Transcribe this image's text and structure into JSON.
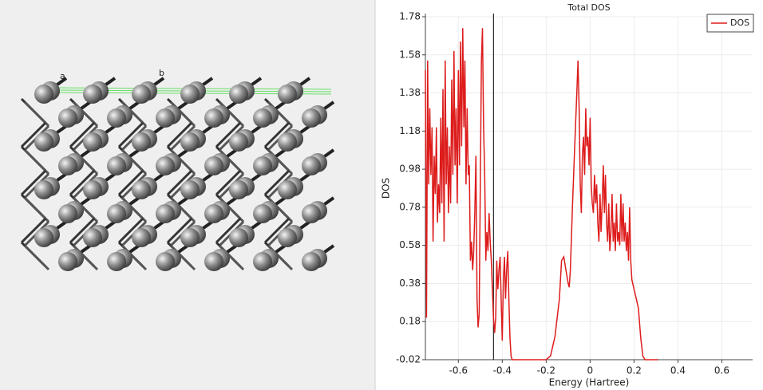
{
  "structure_view": {
    "labels": [
      "a",
      "b"
    ]
  },
  "chart_data": {
    "type": "line",
    "title": "Total DOS",
    "xlabel": "Energy (Hartree)",
    "ylabel": "DOS",
    "xlim": [
      -0.75,
      0.74
    ],
    "ylim": [
      -0.02,
      1.78
    ],
    "xticks": [
      -0.6,
      -0.4,
      -0.2,
      0,
      0.2,
      0.4,
      0.6
    ],
    "yticks": [
      -0.02,
      0.18,
      0.38,
      0.58,
      0.78,
      0.98,
      1.18,
      1.38,
      1.58,
      1.78
    ],
    "grid": true,
    "legend": "upper right",
    "vline": -0.44,
    "series": [
      {
        "name": "DOS",
        "color": "#dd1c1c",
        "x": [
          -0.75,
          -0.745,
          -0.74,
          -0.735,
          -0.73,
          -0.725,
          -0.72,
          -0.715,
          -0.71,
          -0.705,
          -0.7,
          -0.695,
          -0.69,
          -0.685,
          -0.68,
          -0.675,
          -0.67,
          -0.665,
          -0.66,
          -0.655,
          -0.65,
          -0.645,
          -0.64,
          -0.635,
          -0.63,
          -0.625,
          -0.62,
          -0.615,
          -0.61,
          -0.605,
          -0.6,
          -0.595,
          -0.59,
          -0.585,
          -0.58,
          -0.575,
          -0.57,
          -0.565,
          -0.56,
          -0.555,
          -0.55,
          -0.545,
          -0.54,
          -0.535,
          -0.53,
          -0.525,
          -0.52,
          -0.515,
          -0.51,
          -0.505,
          -0.5,
          -0.495,
          -0.49,
          -0.485,
          -0.48,
          -0.475,
          -0.47,
          -0.465,
          -0.46,
          -0.455,
          -0.45,
          -0.445,
          -0.44,
          -0.435,
          -0.43,
          -0.425,
          -0.42,
          -0.415,
          -0.41,
          -0.405,
          -0.4,
          -0.395,
          -0.39,
          -0.385,
          -0.38,
          -0.375,
          -0.37,
          -0.365,
          -0.36,
          -0.355,
          -0.35,
          -0.34,
          -0.3,
          -0.2,
          -0.18,
          -0.16,
          -0.14,
          -0.13,
          -0.12,
          -0.11,
          -0.1,
          -0.095,
          -0.09,
          -0.08,
          -0.07,
          -0.06,
          -0.055,
          -0.05,
          -0.045,
          -0.04,
          -0.035,
          -0.03,
          -0.025,
          -0.02,
          -0.015,
          -0.01,
          -0.005,
          0,
          0.005,
          0.01,
          0.015,
          0.02,
          0.025,
          0.03,
          0.035,
          0.04,
          0.045,
          0.05,
          0.055,
          0.06,
          0.065,
          0.07,
          0.075,
          0.08,
          0.085,
          0.09,
          0.095,
          0.1,
          0.105,
          0.11,
          0.115,
          0.12,
          0.125,
          0.13,
          0.135,
          0.14,
          0.145,
          0.15,
          0.155,
          0.16,
          0.165,
          0.17,
          0.175,
          0.18,
          0.185,
          0.19,
          0.2,
          0.21,
          0.22,
          0.23,
          0.24,
          0.25,
          0.31
        ],
        "values": [
          1.5,
          0.2,
          1.55,
          0.9,
          1.3,
          0.95,
          1.2,
          0.6,
          1.05,
          0.85,
          1.2,
          0.7,
          0.9,
          0.75,
          1.25,
          0.8,
          1.4,
          0.6,
          1.55,
          0.9,
          1.2,
          0.75,
          1.1,
          0.8,
          1.45,
          0.95,
          1.6,
          1.0,
          1.3,
          0.8,
          1.5,
          1.0,
          1.65,
          1.1,
          1.72,
          1.2,
          1.55,
          0.9,
          1.3,
          0.95,
          1.0,
          0.5,
          0.6,
          0.45,
          0.55,
          0.75,
          1.05,
          0.3,
          0.15,
          0.22,
          0.9,
          1.55,
          1.72,
          1.2,
          0.95,
          0.5,
          0.65,
          0.55,
          0.75,
          0.6,
          0.5,
          0.35,
          0.2,
          0.12,
          0.2,
          0.5,
          0.35,
          0.45,
          0.52,
          0.3,
          0.08,
          0.4,
          0.52,
          0.3,
          0.45,
          0.55,
          0.3,
          0.1,
          0.0,
          -0.02,
          -0.02,
          -0.02,
          -0.02,
          -0.02,
          0.0,
          0.1,
          0.3,
          0.5,
          0.52,
          0.45,
          0.38,
          0.36,
          0.45,
          0.8,
          1.1,
          1.4,
          1.55,
          1.3,
          0.9,
          0.75,
          1.05,
          1.15,
          0.95,
          1.3,
          1.1,
          1.15,
          1.0,
          1.25,
          0.9,
          0.8,
          0.75,
          0.95,
          0.8,
          0.9,
          0.7,
          0.6,
          0.85,
          0.65,
          0.8,
          1.0,
          0.75,
          0.95,
          0.7,
          0.6,
          0.8,
          0.55,
          0.65,
          0.85,
          0.6,
          0.7,
          0.55,
          0.8,
          0.6,
          0.65,
          0.58,
          0.85,
          0.6,
          0.8,
          0.6,
          0.7,
          0.55,
          0.65,
          0.5,
          0.78,
          0.5,
          0.4,
          0.35,
          0.3,
          0.25,
          0.1,
          0.0,
          -0.02,
          -0.02
        ]
      }
    ]
  }
}
